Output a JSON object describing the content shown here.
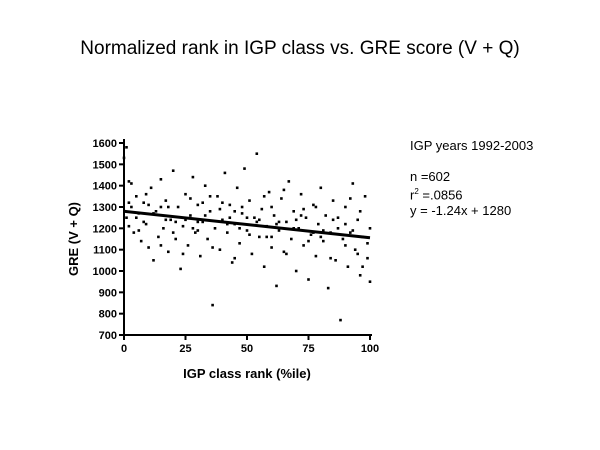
{
  "title": "Normalized rank in IGP class vs. GRE score (V + Q)",
  "stats": {
    "heading": "IGP years 1992-2003",
    "n_line": "n =602",
    "r2_prefix": "r",
    "r2_sup": "2",
    "r2_value": " =.0856",
    "equation": "y = -1.24x + 1280"
  },
  "chart_data": {
    "type": "scatter",
    "title": "Normalized rank in IGP class vs. GRE score (V + Q)",
    "xlabel": "IGP class rank (%ile)",
    "ylabel": "GRE (V + Q)",
    "xlim": [
      0,
      100
    ],
    "ylim": [
      700,
      1600
    ],
    "x_ticks": [
      0,
      25,
      50,
      75,
      100
    ],
    "y_ticks": [
      700,
      800,
      900,
      1000,
      1100,
      1200,
      1300,
      1400,
      1500,
      1600
    ],
    "grid": false,
    "n": 602,
    "trendline": {
      "slope": -1.24,
      "intercept": 1280,
      "x_range": [
        0,
        100
      ]
    },
    "series": [
      {
        "name": "IGP years 1992-2003",
        "points": [
          [
            0,
            1530
          ],
          [
            1,
            1580
          ],
          [
            2,
            1420
          ],
          [
            3,
            1300
          ],
          [
            1,
            1250
          ],
          [
            2,
            1210
          ],
          [
            4,
            1180
          ],
          [
            5,
            1350
          ],
          [
            6,
            1270
          ],
          [
            7,
            1140
          ],
          [
            8,
            1320
          ],
          [
            9,
            1220
          ],
          [
            10,
            1110
          ],
          [
            11,
            1390
          ],
          [
            12,
            1050
          ],
          [
            13,
            1280
          ],
          [
            14,
            1160
          ],
          [
            15,
            1430
          ],
          [
            16,
            1200
          ],
          [
            17,
            1330
          ],
          [
            18,
            1090
          ],
          [
            19,
            1240
          ],
          [
            20,
            1470
          ],
          [
            21,
            1150
          ],
          [
            22,
            1300
          ],
          [
            23,
            1010
          ],
          [
            24,
            1210
          ],
          [
            25,
            1360
          ],
          [
            26,
            1120
          ],
          [
            27,
            1260
          ],
          [
            28,
            1440
          ],
          [
            29,
            1180
          ],
          [
            30,
            1310
          ],
          [
            31,
            1070
          ],
          [
            32,
            1230
          ],
          [
            33,
            1400
          ],
          [
            34,
            1150
          ],
          [
            35,
            1280
          ],
          [
            36,
            840
          ],
          [
            37,
            1200
          ],
          [
            38,
            1350
          ],
          [
            39,
            1100
          ],
          [
            40,
            1240
          ],
          [
            41,
            1460
          ],
          [
            42,
            1180
          ],
          [
            43,
            1310
          ],
          [
            44,
            1040
          ],
          [
            45,
            1220
          ],
          [
            46,
            1390
          ],
          [
            47,
            1130
          ],
          [
            48,
            1270
          ],
          [
            49,
            1480
          ],
          [
            50,
            1190
          ],
          [
            51,
            1330
          ],
          [
            52,
            1080
          ],
          [
            53,
            1250
          ],
          [
            54,
            1550
          ],
          [
            55,
            1160
          ],
          [
            56,
            1290
          ],
          [
            57,
            1020
          ],
          [
            58,
            1210
          ],
          [
            59,
            1370
          ],
          [
            60,
            1110
          ],
          [
            61,
            1260
          ],
          [
            62,
            930
          ],
          [
            63,
            1190
          ],
          [
            64,
            1340
          ],
          [
            65,
            1090
          ],
          [
            66,
            1230
          ],
          [
            67,
            1420
          ],
          [
            68,
            1150
          ],
          [
            69,
            1280
          ],
          [
            70,
            1000
          ],
          [
            71,
            1200
          ],
          [
            72,
            1360
          ],
          [
            73,
            1120
          ],
          [
            74,
            1250
          ],
          [
            75,
            960
          ],
          [
            76,
            1170
          ],
          [
            77,
            1310
          ],
          [
            78,
            1070
          ],
          [
            79,
            1220
          ],
          [
            80,
            1390
          ],
          [
            81,
            1140
          ],
          [
            82,
            1260
          ],
          [
            83,
            920
          ],
          [
            84,
            1180
          ],
          [
            85,
            1330
          ],
          [
            86,
            1050
          ],
          [
            87,
            1200
          ],
          [
            88,
            770
          ],
          [
            89,
            1150
          ],
          [
            90,
            1300
          ],
          [
            91,
            1020
          ],
          [
            92,
            1180
          ],
          [
            93,
            1410
          ],
          [
            94,
            1100
          ],
          [
            95,
            1240
          ],
          [
            96,
            980
          ],
          [
            97,
            1160
          ],
          [
            98,
            1350
          ],
          [
            99,
            1060
          ],
          [
            100,
            1200
          ],
          [
            100,
            950
          ],
          [
            3,
            1410
          ],
          [
            6,
            1190
          ],
          [
            9,
            1360
          ],
          [
            12,
            1270
          ],
          [
            15,
            1120
          ],
          [
            18,
            1300
          ],
          [
            21,
            1230
          ],
          [
            24,
            1080
          ],
          [
            27,
            1340
          ],
          [
            30,
            1190
          ],
          [
            33,
            1260
          ],
          [
            36,
            1110
          ],
          [
            39,
            1290
          ],
          [
            42,
            1220
          ],
          [
            45,
            1060
          ],
          [
            48,
            1300
          ],
          [
            51,
            1170
          ],
          [
            54,
            1230
          ],
          [
            57,
            1350
          ],
          [
            60,
            1160
          ],
          [
            63,
            1230
          ],
          [
            66,
            1080
          ],
          [
            69,
            1200
          ],
          [
            72,
            1260
          ],
          [
            75,
            1140
          ],
          [
            78,
            1300
          ],
          [
            81,
            1190
          ],
          [
            84,
            1060
          ],
          [
            87,
            1250
          ],
          [
            90,
            1120
          ],
          [
            93,
            1190
          ],
          [
            96,
            1280
          ],
          [
            99,
            1130
          ],
          [
            5,
            1250
          ],
          [
            10,
            1310
          ],
          [
            20,
            1180
          ],
          [
            30,
            1230
          ],
          [
            40,
            1320
          ],
          [
            50,
            1250
          ],
          [
            60,
            1300
          ],
          [
            70,
            1240
          ],
          [
            80,
            1160
          ],
          [
            90,
            1220
          ],
          [
            95,
            1080
          ],
          [
            85,
            1240
          ],
          [
            65,
            1380
          ],
          [
            55,
            1240
          ],
          [
            45,
            1280
          ],
          [
            35,
            1350
          ],
          [
            25,
            1240
          ],
          [
            15,
            1300
          ],
          [
            8,
            1230
          ],
          [
            2,
            1320
          ],
          [
            97,
            1020
          ],
          [
            92,
            1340
          ],
          [
            77,
            1180
          ],
          [
            62,
            1220
          ],
          [
            47,
            1200
          ],
          [
            32,
            1320
          ],
          [
            17,
            1240
          ],
          [
            73,
            1290
          ],
          [
            58,
            1160
          ],
          [
            43,
            1250
          ],
          [
            28,
            1200
          ]
        ]
      }
    ]
  }
}
